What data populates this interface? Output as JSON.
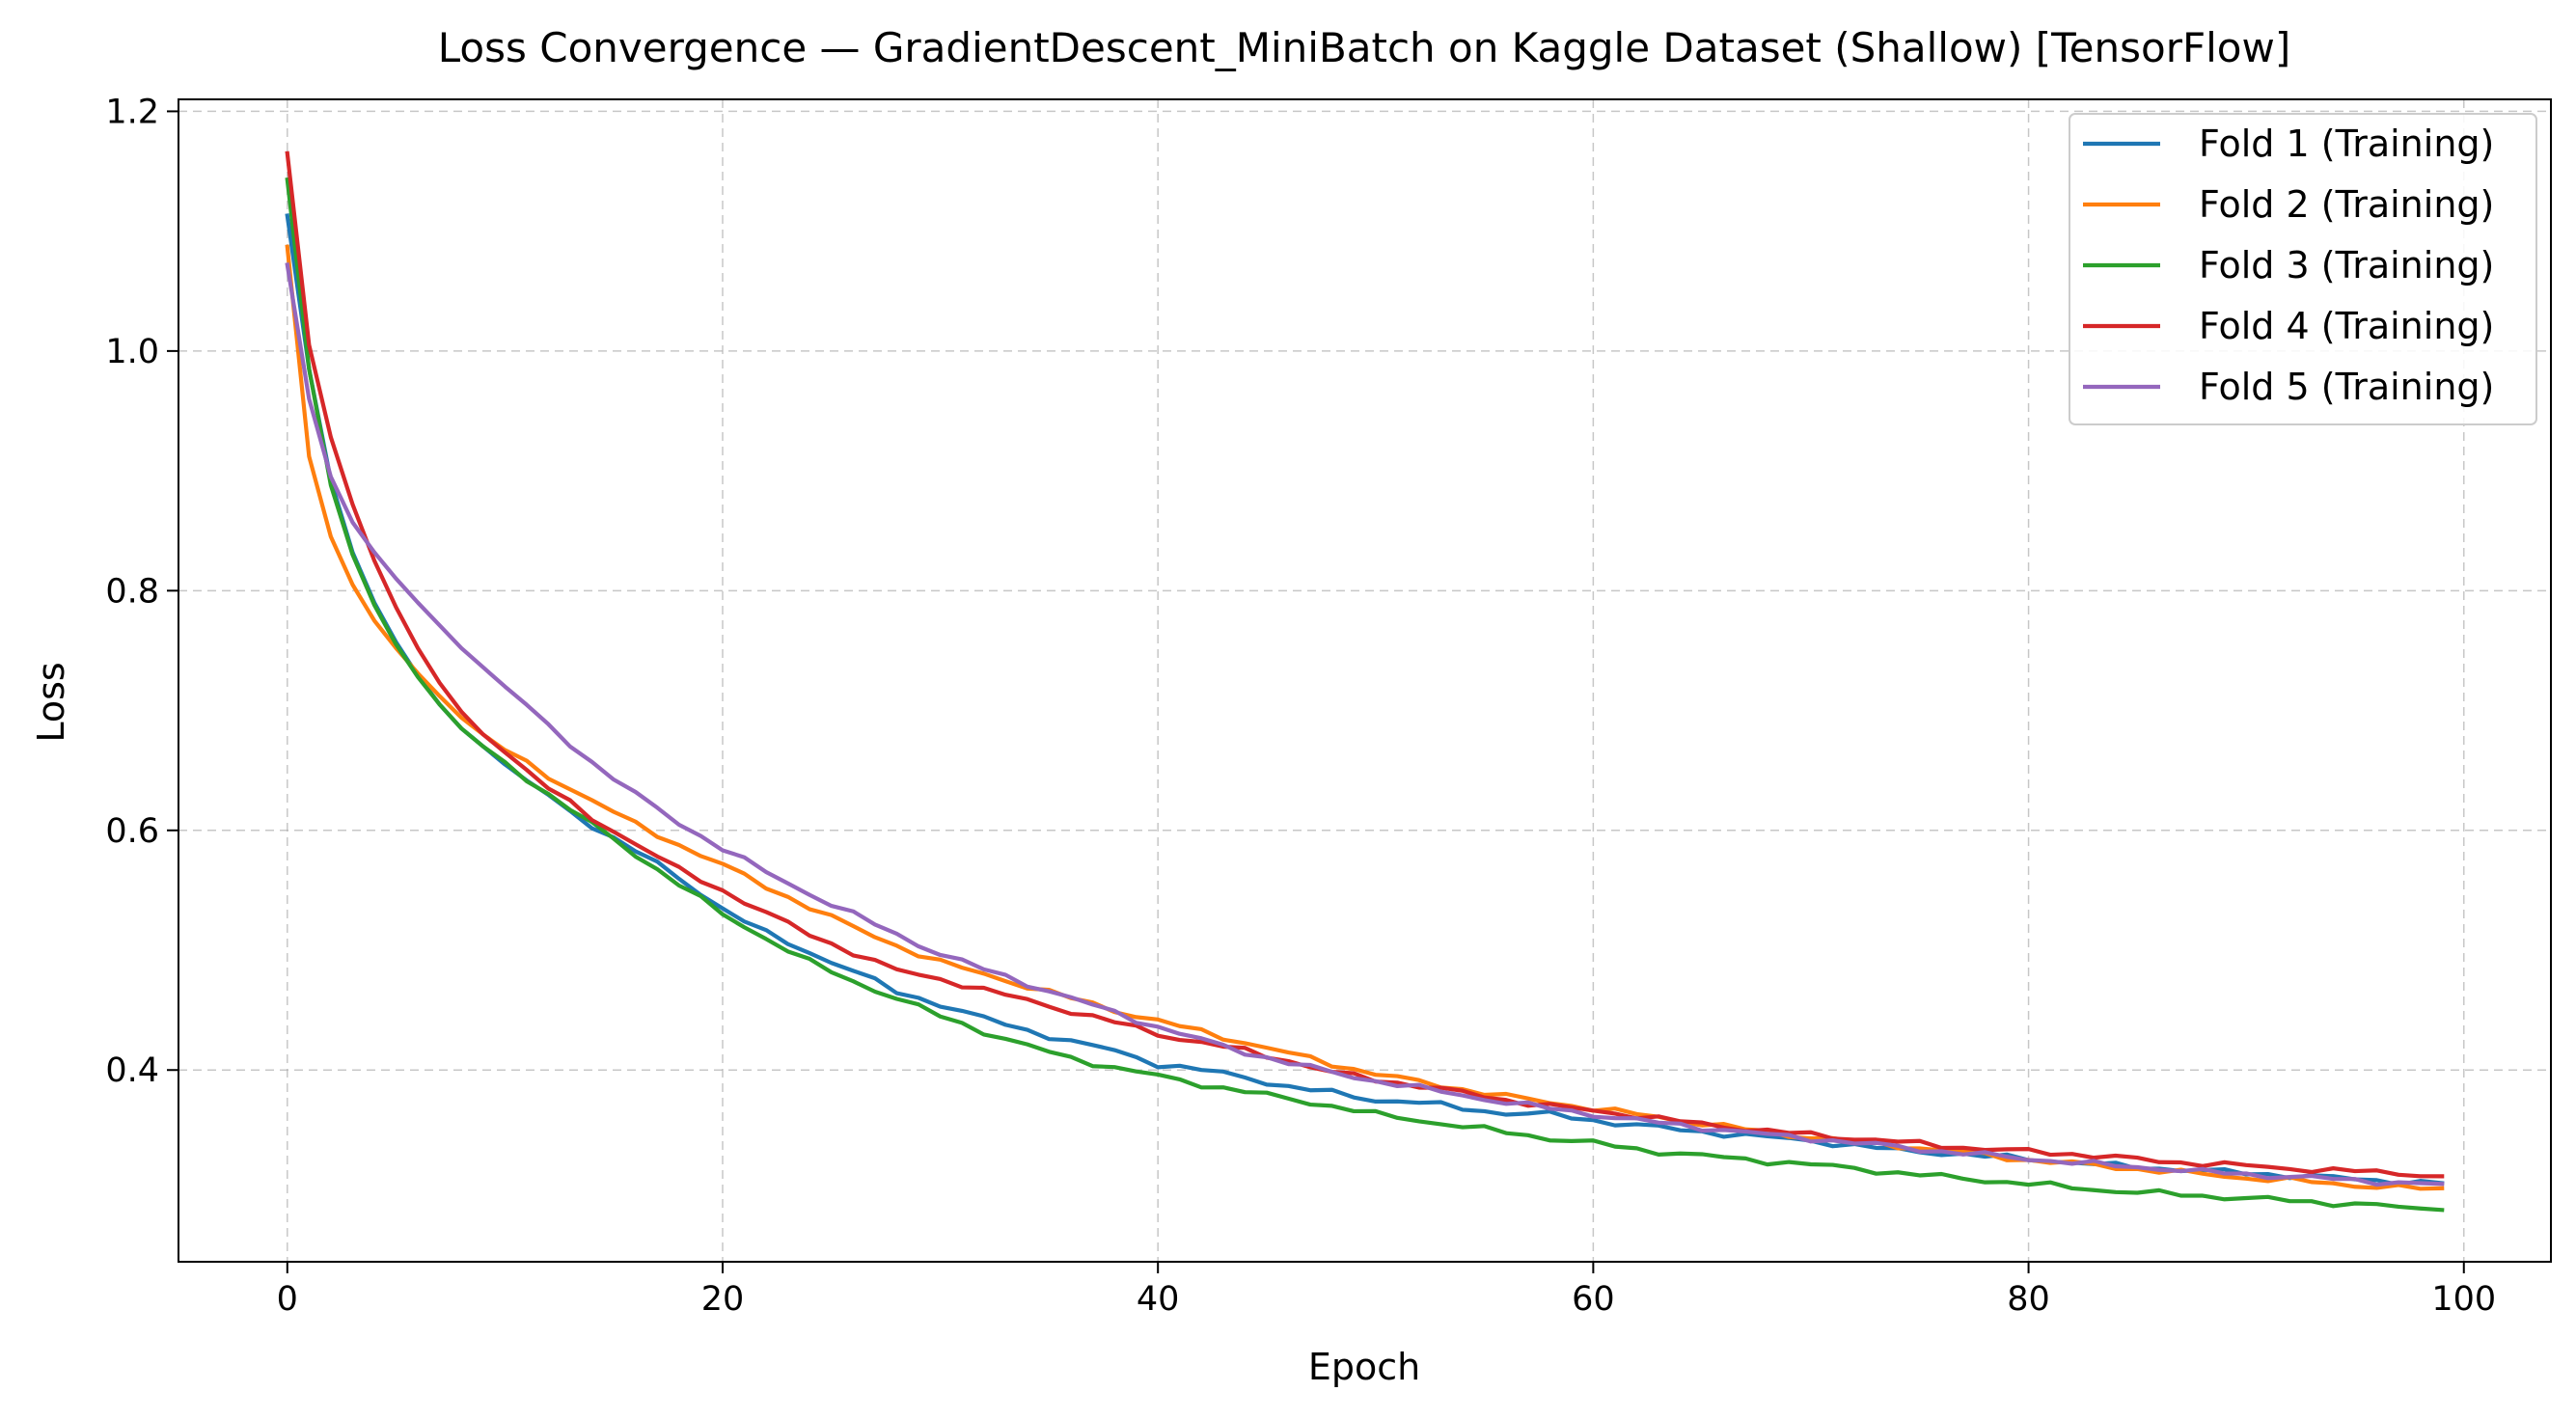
{
  "chart_data": {
    "type": "line",
    "title": "Loss Convergence — GradientDescent_MiniBatch on Kaggle Dataset (Shallow) [TensorFlow]",
    "xlabel": "Epoch",
    "ylabel": "Loss",
    "xlim": [
      -5,
      104
    ],
    "ylim": [
      0.24,
      1.21
    ],
    "xticks": [
      0,
      20,
      40,
      60,
      80,
      100
    ],
    "yticks": [
      0.4,
      0.6,
      0.8,
      1.0,
      1.2
    ],
    "xtick_labels": [
      "0",
      "20",
      "40",
      "60",
      "80",
      "100"
    ],
    "ytick_labels": [
      "0.4",
      "0.6",
      "0.8",
      "1.0",
      "1.2"
    ],
    "grid": true,
    "legend_position": "top-right",
    "epochs": {
      "start": 0,
      "end": 99
    },
    "series": [
      {
        "name": "Fold 1 (Training)",
        "color": "#1f77b4",
        "anchors": [
          [
            0,
            1.113
          ],
          [
            1,
            0.985
          ],
          [
            2,
            0.892
          ],
          [
            3,
            0.832
          ],
          [
            4,
            0.79
          ],
          [
            5,
            0.757
          ],
          [
            6,
            0.729
          ],
          [
            7,
            0.705
          ],
          [
            8,
            0.685
          ],
          [
            9,
            0.67
          ],
          [
            10,
            0.655
          ],
          [
            12,
            0.628
          ],
          [
            14,
            0.604
          ],
          [
            16,
            0.583
          ],
          [
            18,
            0.56
          ],
          [
            20,
            0.535
          ],
          [
            22,
            0.514
          ],
          [
            24,
            0.498
          ],
          [
            26,
            0.483
          ],
          [
            28,
            0.465
          ],
          [
            30,
            0.455
          ],
          [
            32,
            0.443
          ],
          [
            34,
            0.433
          ],
          [
            36,
            0.424
          ],
          [
            38,
            0.416
          ],
          [
            40,
            0.405
          ],
          [
            42,
            0.4
          ],
          [
            44,
            0.394
          ],
          [
            46,
            0.386
          ],
          [
            48,
            0.381
          ],
          [
            50,
            0.375
          ],
          [
            52,
            0.373
          ],
          [
            54,
            0.368
          ],
          [
            56,
            0.364
          ],
          [
            58,
            0.363
          ],
          [
            60,
            0.358
          ],
          [
            62,
            0.354
          ],
          [
            64,
            0.35
          ],
          [
            66,
            0.347
          ],
          [
            68,
            0.344
          ],
          [
            70,
            0.341
          ],
          [
            72,
            0.337
          ],
          [
            74,
            0.333
          ],
          [
            76,
            0.331
          ],
          [
            78,
            0.328
          ],
          [
            80,
            0.326
          ],
          [
            82,
            0.323
          ],
          [
            84,
            0.32
          ],
          [
            86,
            0.318
          ],
          [
            88,
            0.316
          ],
          [
            90,
            0.314
          ],
          [
            92,
            0.312
          ],
          [
            94,
            0.31
          ],
          [
            96,
            0.308
          ],
          [
            98,
            0.306
          ],
          [
            99,
            0.305
          ]
        ]
      },
      {
        "name": "Fold 2 (Training)",
        "color": "#ff7f0e",
        "anchors": [
          [
            0,
            1.087
          ],
          [
            1,
            0.912
          ],
          [
            2,
            0.845
          ],
          [
            3,
            0.805
          ],
          [
            4,
            0.775
          ],
          [
            5,
            0.752
          ],
          [
            6,
            0.731
          ],
          [
            7,
            0.712
          ],
          [
            8,
            0.694
          ],
          [
            9,
            0.68
          ],
          [
            10,
            0.667
          ],
          [
            12,
            0.645
          ],
          [
            14,
            0.625
          ],
          [
            16,
            0.605
          ],
          [
            18,
            0.588
          ],
          [
            20,
            0.571
          ],
          [
            22,
            0.553
          ],
          [
            24,
            0.536
          ],
          [
            26,
            0.519
          ],
          [
            28,
            0.504
          ],
          [
            30,
            0.49
          ],
          [
            32,
            0.48
          ],
          [
            34,
            0.47
          ],
          [
            36,
            0.46
          ],
          [
            38,
            0.45
          ],
          [
            40,
            0.441
          ],
          [
            42,
            0.432
          ],
          [
            44,
            0.423
          ],
          [
            46,
            0.414
          ],
          [
            48,
            0.405
          ],
          [
            50,
            0.397
          ],
          [
            52,
            0.39
          ],
          [
            54,
            0.384
          ],
          [
            56,
            0.378
          ],
          [
            58,
            0.373
          ],
          [
            60,
            0.368
          ],
          [
            62,
            0.363
          ],
          [
            64,
            0.358
          ],
          [
            66,
            0.353
          ],
          [
            68,
            0.348
          ],
          [
            70,
            0.344
          ],
          [
            72,
            0.34
          ],
          [
            74,
            0.337
          ],
          [
            76,
            0.333
          ],
          [
            78,
            0.329
          ],
          [
            80,
            0.325
          ],
          [
            82,
            0.322
          ],
          [
            84,
            0.319
          ],
          [
            86,
            0.316
          ],
          [
            88,
            0.313
          ],
          [
            90,
            0.31
          ],
          [
            92,
            0.308
          ],
          [
            94,
            0.305
          ],
          [
            96,
            0.303
          ],
          [
            98,
            0.301
          ],
          [
            99,
            0.3
          ]
        ]
      },
      {
        "name": "Fold 3 (Training)",
        "color": "#2ca02c",
        "anchors": [
          [
            0,
            1.143
          ],
          [
            1,
            0.985
          ],
          [
            2,
            0.888
          ],
          [
            3,
            0.83
          ],
          [
            4,
            0.788
          ],
          [
            5,
            0.755
          ],
          [
            6,
            0.728
          ],
          [
            7,
            0.705
          ],
          [
            8,
            0.685
          ],
          [
            9,
            0.67
          ],
          [
            10,
            0.657
          ],
          [
            12,
            0.63
          ],
          [
            14,
            0.605
          ],
          [
            16,
            0.58
          ],
          [
            18,
            0.555
          ],
          [
            20,
            0.53
          ],
          [
            22,
            0.51
          ],
          [
            24,
            0.49
          ],
          [
            26,
            0.474
          ],
          [
            28,
            0.46
          ],
          [
            30,
            0.445
          ],
          [
            32,
            0.432
          ],
          [
            34,
            0.42
          ],
          [
            36,
            0.41
          ],
          [
            38,
            0.402
          ],
          [
            40,
            0.395
          ],
          [
            42,
            0.388
          ],
          [
            44,
            0.382
          ],
          [
            46,
            0.376
          ],
          [
            48,
            0.37
          ],
          [
            50,
            0.363
          ],
          [
            52,
            0.358
          ],
          [
            54,
            0.353
          ],
          [
            56,
            0.348
          ],
          [
            58,
            0.343
          ],
          [
            60,
            0.339
          ],
          [
            62,
            0.334
          ],
          [
            64,
            0.33
          ],
          [
            66,
            0.327
          ],
          [
            68,
            0.324
          ],
          [
            70,
            0.321
          ],
          [
            72,
            0.318
          ],
          [
            74,
            0.314
          ],
          [
            76,
            0.311
          ],
          [
            78,
            0.308
          ],
          [
            80,
            0.305
          ],
          [
            82,
            0.302
          ],
          [
            84,
            0.299
          ],
          [
            86,
            0.297
          ],
          [
            88,
            0.295
          ],
          [
            90,
            0.293
          ],
          [
            92,
            0.291
          ],
          [
            94,
            0.289
          ],
          [
            96,
            0.287
          ],
          [
            98,
            0.284
          ],
          [
            99,
            0.286
          ]
        ]
      },
      {
        "name": "Fold 4 (Training)",
        "color": "#d62728",
        "anchors": [
          [
            0,
            1.165
          ],
          [
            1,
            1.005
          ],
          [
            2,
            0.928
          ],
          [
            3,
            0.872
          ],
          [
            4,
            0.825
          ],
          [
            5,
            0.786
          ],
          [
            6,
            0.752
          ],
          [
            7,
            0.723
          ],
          [
            8,
            0.699
          ],
          [
            9,
            0.68
          ],
          [
            10,
            0.665
          ],
          [
            12,
            0.635
          ],
          [
            14,
            0.61
          ],
          [
            16,
            0.589
          ],
          [
            18,
            0.567
          ],
          [
            20,
            0.55
          ],
          [
            22,
            0.531
          ],
          [
            24,
            0.513
          ],
          [
            26,
            0.498
          ],
          [
            28,
            0.483
          ],
          [
            30,
            0.476
          ],
          [
            32,
            0.467
          ],
          [
            34,
            0.458
          ],
          [
            36,
            0.449
          ],
          [
            38,
            0.44
          ],
          [
            40,
            0.43
          ],
          [
            42,
            0.423
          ],
          [
            44,
            0.416
          ],
          [
            46,
            0.408
          ],
          [
            48,
            0.398
          ],
          [
            50,
            0.392
          ],
          [
            52,
            0.387
          ],
          [
            54,
            0.381
          ],
          [
            56,
            0.375
          ],
          [
            58,
            0.37
          ],
          [
            60,
            0.366
          ],
          [
            62,
            0.362
          ],
          [
            64,
            0.357
          ],
          [
            66,
            0.353
          ],
          [
            68,
            0.349
          ],
          [
            70,
            0.346
          ],
          [
            72,
            0.343
          ],
          [
            74,
            0.34
          ],
          [
            76,
            0.337
          ],
          [
            78,
            0.334
          ],
          [
            80,
            0.332
          ],
          [
            82,
            0.33
          ],
          [
            84,
            0.327
          ],
          [
            86,
            0.324
          ],
          [
            88,
            0.322
          ],
          [
            90,
            0.32
          ],
          [
            92,
            0.318
          ],
          [
            94,
            0.316
          ],
          [
            96,
            0.315
          ],
          [
            98,
            0.313
          ],
          [
            99,
            0.31
          ]
        ]
      },
      {
        "name": "Fold 5 (Training)",
        "color": "#9467bd",
        "anchors": [
          [
            0,
            1.072
          ],
          [
            1,
            0.96
          ],
          [
            2,
            0.895
          ],
          [
            3,
            0.857
          ],
          [
            4,
            0.832
          ],
          [
            5,
            0.81
          ],
          [
            6,
            0.79
          ],
          [
            7,
            0.771
          ],
          [
            8,
            0.752
          ],
          [
            9,
            0.736
          ],
          [
            10,
            0.72
          ],
          [
            12,
            0.687
          ],
          [
            14,
            0.657
          ],
          [
            16,
            0.63
          ],
          [
            18,
            0.606
          ],
          [
            20,
            0.585
          ],
          [
            22,
            0.565
          ],
          [
            24,
            0.547
          ],
          [
            26,
            0.53
          ],
          [
            28,
            0.513
          ],
          [
            30,
            0.497
          ],
          [
            32,
            0.484
          ],
          [
            34,
            0.472
          ],
          [
            36,
            0.46
          ],
          [
            38,
            0.448
          ],
          [
            40,
            0.436
          ],
          [
            42,
            0.425
          ],
          [
            44,
            0.415
          ],
          [
            46,
            0.406
          ],
          [
            48,
            0.398
          ],
          [
            50,
            0.391
          ],
          [
            52,
            0.385
          ],
          [
            54,
            0.379
          ],
          [
            56,
            0.373
          ],
          [
            58,
            0.368
          ],
          [
            60,
            0.363
          ],
          [
            62,
            0.358
          ],
          [
            64,
            0.354
          ],
          [
            66,
            0.35
          ],
          [
            68,
            0.346
          ],
          [
            70,
            0.343
          ],
          [
            72,
            0.339
          ],
          [
            74,
            0.336
          ],
          [
            76,
            0.332
          ],
          [
            78,
            0.329
          ],
          [
            80,
            0.326
          ],
          [
            82,
            0.323
          ],
          [
            84,
            0.32
          ],
          [
            86,
            0.318
          ],
          [
            88,
            0.315
          ],
          [
            90,
            0.313
          ],
          [
            92,
            0.311
          ],
          [
            94,
            0.309
          ],
          [
            96,
            0.307
          ],
          [
            98,
            0.305
          ],
          [
            99,
            0.304
          ]
        ]
      }
    ]
  }
}
